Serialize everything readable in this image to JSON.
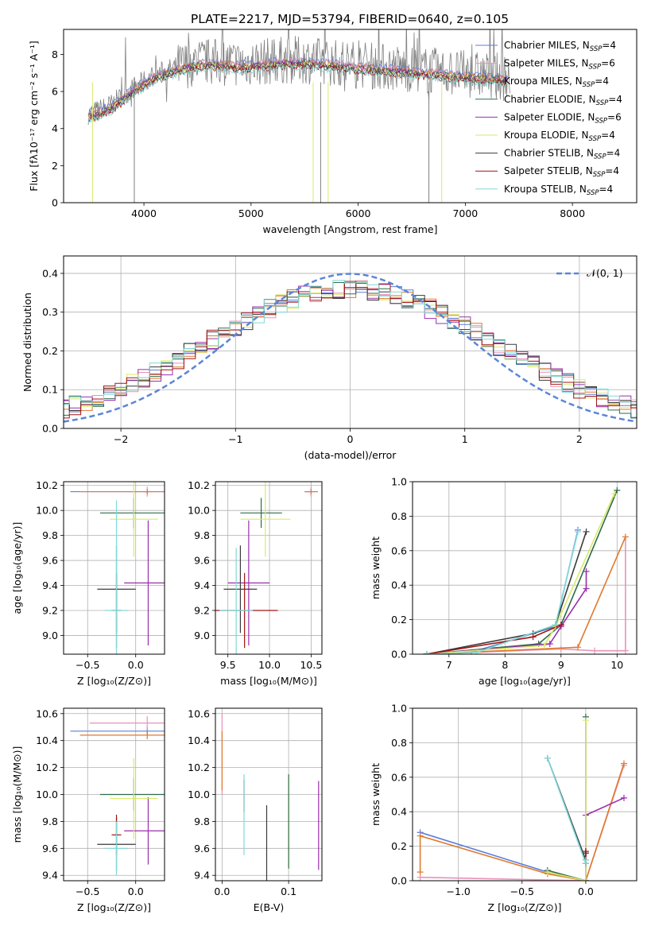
{
  "figure_title": "PLATE=2217, MJD=53794, FIBERID=0640, z=0.105",
  "colors": {
    "chabrier_miles": "#5b7fd9",
    "salpeter_miles": "#e893b8",
    "kroupa_miles": "#e0792e",
    "chabrier_elodie": "#2e6b4a",
    "salpeter_elodie": "#9a2fae",
    "kroupa_elodie": "#d9ea6a",
    "chabrier_stelib": "#3a3a3a",
    "salpeter_stelib": "#a31414",
    "kroupa_stelib": "#7fd9d9",
    "data": "#808080",
    "gaussian": "#5b86d6"
  },
  "chart_data": [
    {
      "id": "spectrum",
      "type": "line",
      "xlabel": "wavelength [Angstrom, rest frame]",
      "ylabel": "Flux [fλ10⁻¹⁷ erg cm⁻² s⁻¹ A⁻¹]",
      "xlim": [
        3250,
        8600
      ],
      "ylim": [
        0,
        9.35
      ],
      "xticks": [
        4000,
        5000,
        6000,
        7000,
        8000
      ],
      "yticks": [
        0,
        2,
        4,
        6,
        8
      ],
      "legend_position": "top-right",
      "legend": [
        {
          "label": "Chabrier MILES, N",
          "sub": "SSP",
          "eq": "=4",
          "color_key": "chabrier_miles"
        },
        {
          "label": "Salpeter MILES, N",
          "sub": "SSP",
          "eq": "=6",
          "color_key": "salpeter_miles"
        },
        {
          "label": "Kroupa MILES, N",
          "sub": "SSP",
          "eq": "=4",
          "color_key": "kroupa_miles"
        },
        {
          "label": "Chabrier ELODIE, N",
          "sub": "SSP",
          "eq": "=4",
          "color_key": "chabrier_elodie"
        },
        {
          "label": "Salpeter ELODIE, N",
          "sub": "SSP",
          "eq": "=6",
          "color_key": "salpeter_elodie"
        },
        {
          "label": "Kroupa ELODIE, N",
          "sub": "SSP",
          "eq": "=4",
          "color_key": "kroupa_elodie"
        },
        {
          "label": "Chabrier STELIB, N",
          "sub": "SSP",
          "eq": "=4",
          "color_key": "chabrier_stelib"
        },
        {
          "label": "Salpeter STELIB, N",
          "sub": "SSP",
          "eq": "=4",
          "color_key": "salpeter_stelib"
        },
        {
          "label": "Kroupa STELIB, N",
          "sub": "SSP",
          "eq": "=4",
          "color_key": "kroupa_stelib"
        }
      ],
      "continuum": {
        "x": [
          3500,
          3700,
          3900,
          4100,
          4300,
          4500,
          4700,
          4900,
          5100,
          5300,
          5500,
          5700,
          5900,
          6100,
          6300,
          6500,
          6700,
          6900,
          7100,
          7300,
          7500,
          7700,
          7900,
          8100,
          8300,
          8500
        ],
        "y": [
          4.8,
          5.3,
          6.2,
          6.9,
          7.3,
          7.6,
          7.6,
          7.5,
          7.6,
          7.7,
          7.7,
          7.6,
          7.5,
          7.4,
          7.3,
          7.2,
          7.1,
          7.0,
          6.9,
          6.8,
          6.75,
          6.75,
          6.7,
          6.7,
          6.75,
          6.75
        ]
      }
    },
    {
      "id": "residuals",
      "type": "step",
      "xlabel": "(data-model)/error",
      "ylabel": "Normed distribution",
      "xlim": [
        -2.5,
        2.5
      ],
      "ylim": [
        0,
        0.445
      ],
      "xticks": [
        -2,
        -1,
        0,
        1,
        2
      ],
      "yticks": [
        0.0,
        0.1,
        0.2,
        0.3,
        0.4
      ],
      "legend_label": "𝒩(0, 1)",
      "gaussian": {
        "mean": 0,
        "sigma": 1
      }
    },
    {
      "id": "age-vs-Z",
      "type": "errorbar",
      "xlabel": "Z [log₁₀(Z/Z⊙)]",
      "ylabel": "age  [log₁₀(age/yr)]",
      "xlim": [
        -0.75,
        0.3
      ],
      "ylim": [
        8.85,
        10.23
      ],
      "xticks": [
        -0.5,
        0.0
      ],
      "yticks": [
        9.0,
        9.2,
        9.4,
        9.6,
        9.8,
        10.0,
        10.2
      ],
      "points": [
        {
          "x": 0.12,
          "y": 10.15,
          "xerr": 0.8,
          "yerr": 0.02,
          "color_key": "chabrier_miles"
        },
        {
          "x": 0.12,
          "y": 10.15,
          "xerr": 0.04,
          "yerr": 0.04,
          "color_key": "salpeter_miles"
        },
        {
          "x": 0.12,
          "y": 10.15,
          "xerr": 0.7,
          "yerr": 0.02,
          "color_key": "kroupa_miles"
        },
        {
          "x": -0.02,
          "y": 9.98,
          "xerr": 0.35,
          "yerr": 0.12,
          "color_key": "chabrier_elodie"
        },
        {
          "x": 0.13,
          "y": 9.42,
          "xerr": 0.25,
          "yerr": 0.5,
          "color_key": "salpeter_elodie"
        },
        {
          "x": -0.02,
          "y": 9.93,
          "xerr": 0.25,
          "yerr": 0.3,
          "color_key": "kroupa_elodie"
        },
        {
          "x": -0.2,
          "y": 9.37,
          "xerr": 0.2,
          "yerr": 0.35,
          "color_key": "chabrier_stelib"
        },
        {
          "x": -0.2,
          "y": 9.2,
          "xerr": 0.05,
          "yerr": 0.3,
          "color_key": "salpeter_stelib"
        },
        {
          "x": -0.2,
          "y": 9.2,
          "xerr": 0.12,
          "yerr": 0.88,
          "color_key": "kroupa_stelib"
        }
      ]
    },
    {
      "id": "age-vs-mass",
      "type": "errorbar",
      "xlabel": "mass [log₁₀(M/M⊙)]",
      "ylabel": "",
      "xlim": [
        9.35,
        10.63
      ],
      "ylim": [
        8.85,
        10.23
      ],
      "xticks": [
        9.5,
        10.0,
        10.5
      ],
      "yticks": [
        9.0,
        9.2,
        9.4,
        9.6,
        9.8,
        10.0,
        10.2
      ],
      "points": [
        {
          "x": 10.5,
          "y": 10.15,
          "xerr": 0.08,
          "yerr": 0.03,
          "color_key": "chabrier_miles"
        },
        {
          "x": 10.5,
          "y": 10.15,
          "xerr": 0.05,
          "yerr": 0.04,
          "color_key": "salpeter_miles"
        },
        {
          "x": 10.5,
          "y": 10.15,
          "xerr": 0.08,
          "yerr": 0.02,
          "color_key": "kroupa_miles"
        },
        {
          "x": 9.9,
          "y": 9.98,
          "xerr": 0.25,
          "yerr": 0.12,
          "color_key": "chabrier_elodie"
        },
        {
          "x": 9.75,
          "y": 9.42,
          "xerr": 0.25,
          "yerr": 0.5,
          "color_key": "salpeter_elodie"
        },
        {
          "x": 9.95,
          "y": 9.93,
          "xerr": 0.3,
          "yerr": 0.3,
          "color_key": "kroupa_elodie"
        },
        {
          "x": 9.65,
          "y": 9.37,
          "xerr": 0.2,
          "yerr": 0.35,
          "color_key": "chabrier_stelib"
        },
        {
          "x": 9.7,
          "y": 9.2,
          "xerr": 0.4,
          "yerr": 0.3,
          "color_key": "salpeter_stelib"
        },
        {
          "x": 9.6,
          "y": 9.2,
          "xerr": 0.2,
          "yerr": 0.5,
          "color_key": "kroupa_stelib"
        }
      ]
    },
    {
      "id": "massweight-vs-age",
      "type": "line",
      "xlabel": "age  [log₁₀(age/yr)]",
      "ylabel": "mass weight",
      "xlim": [
        6.35,
        10.35
      ],
      "ylim": [
        0,
        1.0
      ],
      "xticks": [
        7,
        8,
        9,
        10
      ],
      "yticks": [
        0.0,
        0.2,
        0.4,
        0.6,
        0.8,
        1.0
      ],
      "series": [
        {
          "color_key": "chabrier_miles",
          "x": [
            6.6,
            7.4,
            8.9,
            9.3
          ],
          "y": [
            0.0,
            0.01,
            0.16,
            0.72
          ]
        },
        {
          "color_key": "salpeter_miles",
          "x": [
            6.6,
            9.0,
            9.6,
            10.15,
            10.15
          ],
          "y": [
            0.0,
            0.03,
            0.02,
            0.02,
            0.68
          ]
        },
        {
          "color_key": "kroupa_miles",
          "x": [
            6.6,
            9.3,
            10.15
          ],
          "y": [
            0.0,
            0.04,
            0.68
          ]
        },
        {
          "color_key": "chabrier_elodie",
          "x": [
            6.6,
            8.6,
            9.0,
            10.0
          ],
          "y": [
            0.0,
            0.06,
            0.17,
            0.95
          ]
        },
        {
          "color_key": "salpeter_elodie",
          "x": [
            6.6,
            8.8,
            9.0,
            9.45,
            9.45
          ],
          "y": [
            0.0,
            0.06,
            0.16,
            0.38,
            0.48
          ]
        },
        {
          "color_key": "kroupa_elodie",
          "x": [
            6.6,
            8.7,
            8.9,
            9.95
          ],
          "y": [
            0.0,
            0.05,
            0.16,
            0.93
          ]
        },
        {
          "color_key": "chabrier_stelib",
          "x": [
            6.6,
            8.5,
            8.9,
            9.45
          ],
          "y": [
            0.0,
            0.12,
            0.17,
            0.71
          ]
        },
        {
          "color_key": "salpeter_stelib",
          "x": [
            6.6,
            8.5,
            9.0
          ],
          "y": [
            0.0,
            0.1,
            0.17
          ]
        },
        {
          "color_key": "kroupa_stelib",
          "x": [
            6.6,
            7.5,
            8.9,
            9.3
          ],
          "y": [
            0.0,
            0.01,
            0.17,
            0.71
          ]
        }
      ]
    },
    {
      "id": "mass-vs-Z",
      "type": "errorbar",
      "xlabel": "Z [log₁₀(Z/Z⊙)]",
      "ylabel": "mass [log₁₀(M/M⊙)]",
      "xlim": [
        -0.75,
        0.3
      ],
      "ylim": [
        9.36,
        10.64
      ],
      "xticks": [
        -0.5,
        0.0
      ],
      "yticks": [
        9.4,
        9.6,
        9.8,
        10.0,
        10.2,
        10.4,
        10.6
      ],
      "points": [
        {
          "x": 0.12,
          "y": 10.47,
          "xerr": 0.8,
          "yerr": 0.03,
          "color_key": "chabrier_miles"
        },
        {
          "x": 0.12,
          "y": 10.53,
          "xerr": 0.6,
          "yerr": 0.05,
          "color_key": "salpeter_miles"
        },
        {
          "x": 0.12,
          "y": 10.44,
          "xerr": 0.7,
          "yerr": 0.03,
          "color_key": "kroupa_miles"
        },
        {
          "x": -0.02,
          "y": 10.0,
          "xerr": 0.35,
          "yerr": 0.12,
          "color_key": "chabrier_elodie"
        },
        {
          "x": 0.13,
          "y": 9.73,
          "xerr": 0.25,
          "yerr": 0.25,
          "color_key": "salpeter_elodie"
        },
        {
          "x": -0.02,
          "y": 9.97,
          "xerr": 0.25,
          "yerr": 0.3,
          "color_key": "kroupa_elodie"
        },
        {
          "x": -0.2,
          "y": 9.63,
          "xerr": 0.2,
          "yerr": 0.2,
          "color_key": "chabrier_stelib"
        },
        {
          "x": -0.2,
          "y": 9.7,
          "xerr": 0.05,
          "yerr": 0.15,
          "color_key": "salpeter_stelib"
        },
        {
          "x": -0.2,
          "y": 9.6,
          "xerr": 0.12,
          "yerr": 0.2,
          "color_key": "kroupa_stelib"
        }
      ]
    },
    {
      "id": "mass-vs-EBV",
      "type": "errorbar",
      "xlabel": "E(B-V)",
      "ylabel": "",
      "xlim": [
        -0.01,
        0.15
      ],
      "ylim": [
        9.36,
        10.64
      ],
      "xticks": [
        0.0,
        0.1
      ],
      "yticks": [
        9.4,
        9.6,
        9.8,
        10.0,
        10.2,
        10.4,
        10.6
      ],
      "points": [
        {
          "x": 0.0,
          "y": 10.3,
          "xerr": 0.0,
          "yerr": 0.3,
          "color_key": "salpeter_miles"
        },
        {
          "x": 0.0,
          "y": 10.25,
          "xerr": 0.0,
          "yerr": 0.22,
          "color_key": "kroupa_miles"
        },
        {
          "x": 0.033,
          "y": 9.99,
          "xerr": 0.0,
          "yerr": 0.12,
          "color_key": "salpeter_stelib"
        },
        {
          "x": 0.033,
          "y": 9.85,
          "xerr": 0.0,
          "yerr": 0.3,
          "color_key": "kroupa_stelib"
        },
        {
          "x": 0.067,
          "y": 9.62,
          "xerr": 0.0,
          "yerr": 0.3,
          "color_key": "chabrier_stelib"
        },
        {
          "x": 0.1,
          "y": 9.8,
          "xerr": 0.0,
          "yerr": 0.35,
          "color_key": "kroupa_elodie"
        },
        {
          "x": 0.1,
          "y": 9.8,
          "xerr": 0.0,
          "yerr": 0.35,
          "color_key": "chabrier_elodie"
        },
        {
          "x": 0.145,
          "y": 9.77,
          "xerr": 0.0,
          "yerr": 0.33,
          "color_key": "salpeter_elodie"
        }
      ]
    },
    {
      "id": "massweight-vs-Z",
      "type": "line",
      "xlabel": "Z [log₁₀(Z/Z⊙)]",
      "ylabel": "mass weight",
      "xlim": [
        -1.36,
        0.4
      ],
      "ylim": [
        0,
        1.0
      ],
      "xticks": [
        -1.0,
        -0.5,
        0.0
      ],
      "yticks": [
        0.0,
        0.2,
        0.4,
        0.6,
        0.8,
        1.0
      ],
      "series": [
        {
          "color_key": "chabrier_miles",
          "x": [
            -1.3,
            -0.3,
            0.0
          ],
          "y": [
            0.28,
            0.05,
            0.0
          ]
        },
        {
          "color_key": "salpeter_miles",
          "x": [
            -1.3,
            0.0,
            0.3
          ],
          "y": [
            0.02,
            0.0,
            0.67
          ]
        },
        {
          "color_key": "kroupa_miles",
          "x": [
            -1.3,
            -1.3,
            -0.3,
            0.0,
            0.3
          ],
          "y": [
            0.05,
            0.26,
            0.04,
            0.0,
            0.68
          ]
        },
        {
          "color_key": "chabrier_elodie",
          "x": [
            -0.3,
            0.0,
            0.0
          ],
          "y": [
            0.06,
            0.0,
            0.95
          ]
        },
        {
          "color_key": "salpeter_elodie",
          "x": [
            0.0,
            0.0,
            0.3
          ],
          "y": [
            0.0,
            0.38,
            0.48
          ]
        },
        {
          "color_key": "kroupa_elodie",
          "x": [
            -0.3,
            0.0,
            0.0
          ],
          "y": [
            0.05,
            0.0,
            0.93
          ]
        },
        {
          "color_key": "chabrier_stelib",
          "x": [
            -0.3,
            0.0,
            0.0
          ],
          "y": [
            0.71,
            0.12,
            0.16
          ]
        },
        {
          "color_key": "salpeter_stelib",
          "x": [
            0.0,
            0.0
          ],
          "y": [
            0.1,
            0.17
          ]
        },
        {
          "color_key": "kroupa_stelib",
          "x": [
            -0.3,
            0.0,
            0.0
          ],
          "y": [
            0.71,
            0.1,
            0.12
          ]
        }
      ]
    }
  ]
}
